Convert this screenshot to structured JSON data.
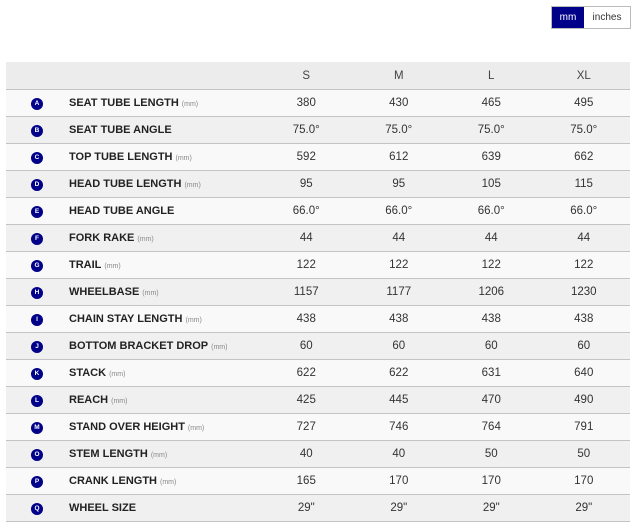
{
  "units_toggle": {
    "options": [
      "mm",
      "inches"
    ],
    "selected": "mm",
    "accent": "#000088"
  },
  "sizes": [
    "S",
    "M",
    "L",
    "XL"
  ],
  "rows": [
    {
      "letter": "A",
      "label": "SEAT TUBE LENGTH",
      "unit": "(mm)",
      "values": [
        "380",
        "430",
        "465",
        "495"
      ]
    },
    {
      "letter": "B",
      "label": "SEAT TUBE ANGLE",
      "unit": "",
      "values": [
        "75.0°",
        "75.0°",
        "75.0°",
        "75.0°"
      ]
    },
    {
      "letter": "C",
      "label": "TOP TUBE LENGTH",
      "unit": "(mm)",
      "values": [
        "592",
        "612",
        "639",
        "662"
      ]
    },
    {
      "letter": "D",
      "label": "HEAD TUBE LENGTH",
      "unit": "(mm)",
      "values": [
        "95",
        "95",
        "105",
        "115"
      ]
    },
    {
      "letter": "E",
      "label": "HEAD TUBE ANGLE",
      "unit": "",
      "values": [
        "66.0°",
        "66.0°",
        "66.0°",
        "66.0°"
      ]
    },
    {
      "letter": "F",
      "label": "FORK RAKE",
      "unit": "(mm)",
      "values": [
        "44",
        "44",
        "44",
        "44"
      ]
    },
    {
      "letter": "G",
      "label": "TRAIL",
      "unit": "(mm)",
      "values": [
        "122",
        "122",
        "122",
        "122"
      ]
    },
    {
      "letter": "H",
      "label": "WHEELBASE",
      "unit": "(mm)",
      "values": [
        "1157",
        "1177",
        "1206",
        "1230"
      ]
    },
    {
      "letter": "I",
      "label": "CHAIN STAY LENGTH",
      "unit": "(mm)",
      "values": [
        "438",
        "438",
        "438",
        "438"
      ]
    },
    {
      "letter": "J",
      "label": "BOTTOM BRACKET DROP",
      "unit": "(mm)",
      "values": [
        "60",
        "60",
        "60",
        "60"
      ]
    },
    {
      "letter": "K",
      "label": "STACK",
      "unit": "(mm)",
      "values": [
        "622",
        "622",
        "631",
        "640"
      ]
    },
    {
      "letter": "L",
      "label": "REACH",
      "unit": "(mm)",
      "values": [
        "425",
        "445",
        "470",
        "490"
      ]
    },
    {
      "letter": "M",
      "label": "STAND OVER HEIGHT",
      "unit": "(mm)",
      "values": [
        "727",
        "746",
        "764",
        "791"
      ]
    },
    {
      "letter": "O",
      "label": "STEM LENGTH",
      "unit": "(mm)",
      "values": [
        "40",
        "40",
        "50",
        "50"
      ]
    },
    {
      "letter": "P",
      "label": "CRANK LENGTH",
      "unit": "(mm)",
      "values": [
        "165",
        "170",
        "170",
        "170"
      ]
    },
    {
      "letter": "Q",
      "label": "WHEEL SIZE",
      "unit": "",
      "values": [
        "29\"",
        "29\"",
        "29\"",
        "29\""
      ]
    }
  ]
}
